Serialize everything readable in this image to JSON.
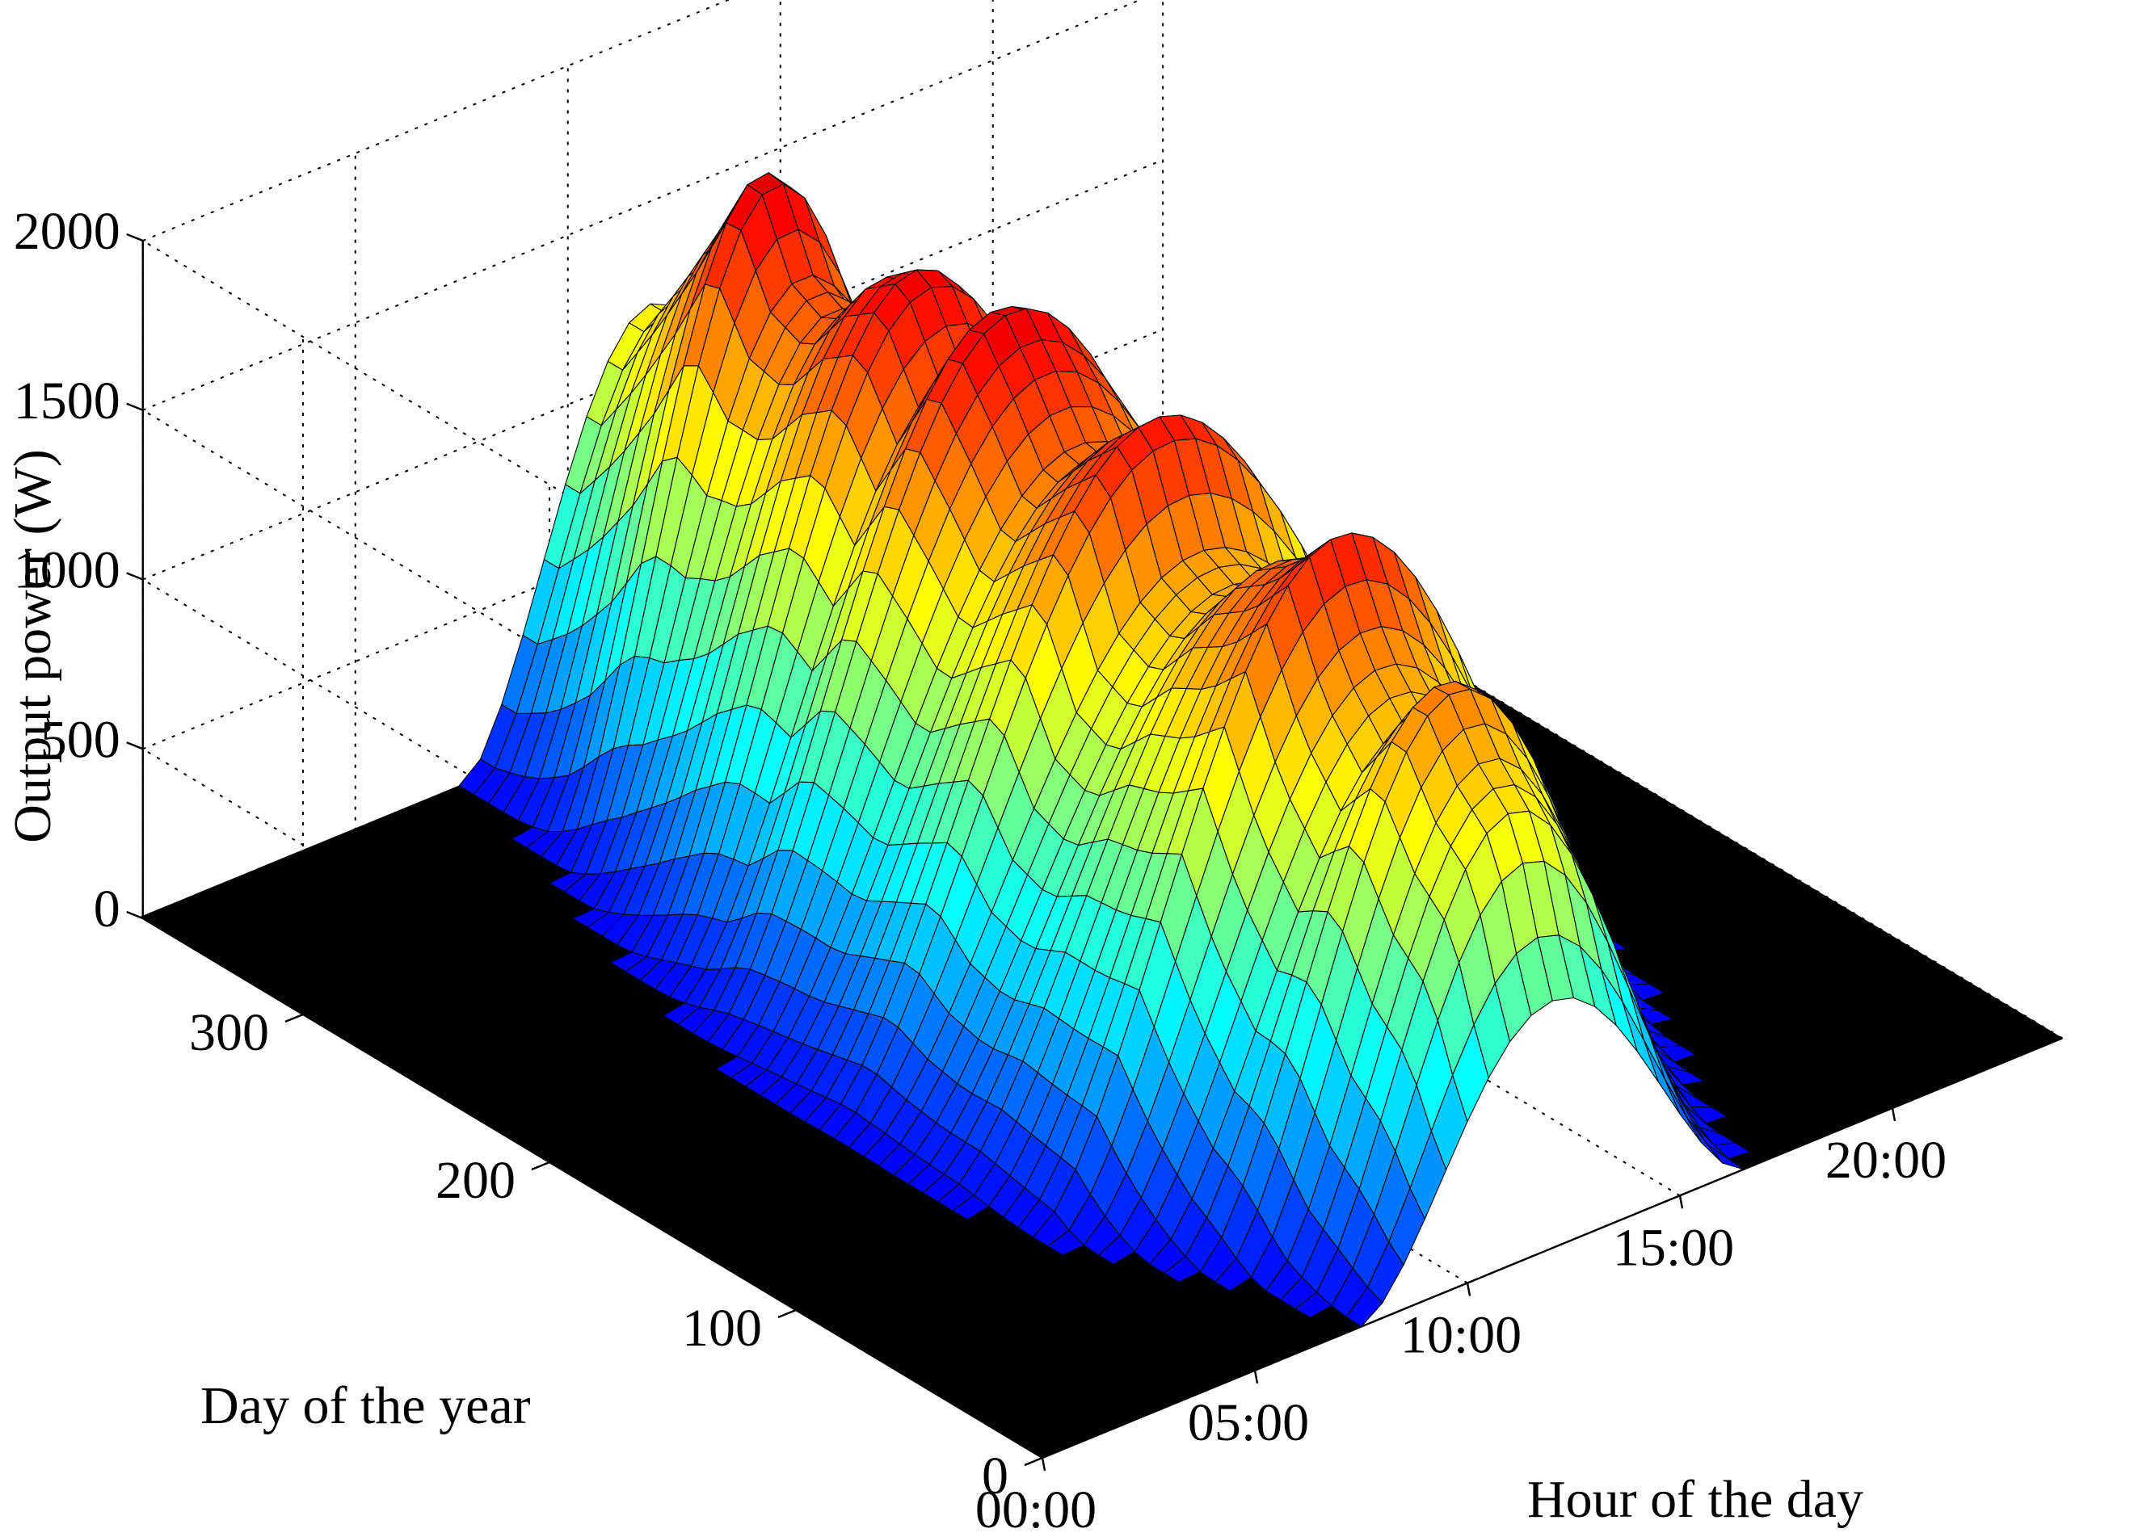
{
  "chart_data": {
    "type": "surface3d",
    "title": "",
    "xlabel": "Hour of the day",
    "ylabel": "Day of the year",
    "zlabel": "Output power (W)",
    "x_ticks": [
      "00:00",
      "05:00",
      "10:00",
      "15:00",
      "20:00"
    ],
    "x_tick_values": [
      0,
      5,
      10,
      15,
      20
    ],
    "xlim": [
      0,
      24
    ],
    "y_ticks": [
      "0",
      "100",
      "200",
      "300"
    ],
    "y_tick_values": [
      0,
      100,
      200,
      300
    ],
    "ylim": [
      0,
      365
    ],
    "z_ticks": [
      "0",
      "500",
      "1000",
      "1500",
      "2000"
    ],
    "z_tick_values": [
      0,
      500,
      1000,
      1500,
      2000
    ],
    "zlim": [
      0,
      2000
    ],
    "grid": true,
    "colormap": "jet",
    "surface": {
      "description": "Daily PV output profile across the year; non-zero between ~04:00 and ~20:00, peaking near midday",
      "day_samples": [
        1,
        15,
        30,
        45,
        60,
        75,
        90,
        105,
        120,
        135,
        150,
        165,
        180,
        195,
        210,
        225,
        240,
        255,
        270,
        285,
        300,
        315,
        330,
        345,
        360
      ],
      "daily_peak_w": [
        730,
        1180,
        1300,
        1490,
        1280,
        1420,
        1700,
        1560,
        1480,
        1320,
        1380,
        1720,
        1600,
        1450,
        1650,
        1820,
        1560,
        1780,
        1690,
        1510,
        1570,
        1840,
        1600,
        1380,
        1190
      ],
      "sunrise_hour": [
        7.5,
        7.3,
        7.0,
        6.5,
        6.0,
        5.5,
        5.0,
        4.8,
        4.6,
        4.5,
        4.4,
        4.4,
        4.5,
        4.6,
        4.8,
        5.0,
        5.3,
        5.6,
        5.9,
        6.2,
        6.6,
        7.0,
        7.3,
        7.5,
        7.6
      ],
      "sunset_hour": [
        16.5,
        16.8,
        17.3,
        17.8,
        18.3,
        18.8,
        19.3,
        19.7,
        20.0,
        20.2,
        20.3,
        20.3,
        20.2,
        20.0,
        19.7,
        19.3,
        18.8,
        18.3,
        17.8,
        17.3,
        16.9,
        16.6,
        16.4,
        16.3,
        16.4
      ]
    }
  }
}
